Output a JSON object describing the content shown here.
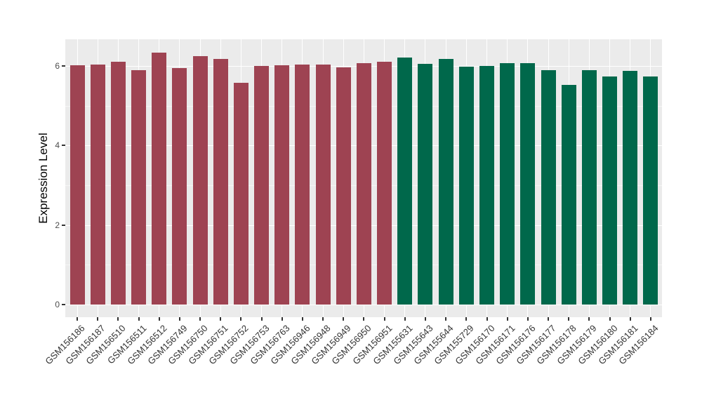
{
  "figure": {
    "background": "#FFFFFF",
    "panel_background": "#EBEBEB",
    "grid_color": "#FFFFFF",
    "tick_color": "#333333"
  },
  "chart_data": {
    "type": "bar",
    "title": "",
    "xlabel": "",
    "ylabel": "Expression Level",
    "ylim": [
      0,
      6.7
    ],
    "yticks": [
      0,
      2,
      4,
      6
    ],
    "yticks_minor": [
      1,
      3,
      5
    ],
    "grid": "on",
    "legend": "none",
    "group_colors": {
      "left_group": "#9E4352",
      "right_group": "#00684B"
    },
    "categories": [
      "GSM156186",
      "GSM156187",
      "GSM156510",
      "GSM156511",
      "GSM156512",
      "GSM156749",
      "GSM156750",
      "GSM156751",
      "GSM156752",
      "GSM156753",
      "GSM156763",
      "GSM156946",
      "GSM156948",
      "GSM156949",
      "GSM156950",
      "GSM156951",
      "GSM155631",
      "GSM155643",
      "GSM155644",
      "GSM155729",
      "GSM156170",
      "GSM156171",
      "GSM156176",
      "GSM156177",
      "GSM156178",
      "GSM156179",
      "GSM156180",
      "GSM156181",
      "GSM156184"
    ],
    "values": [
      6.02,
      6.03,
      6.11,
      5.9,
      6.33,
      5.94,
      6.24,
      6.18,
      5.57,
      6.0,
      6.02,
      6.04,
      6.04,
      5.97,
      6.07,
      6.11,
      6.22,
      6.05,
      6.17,
      5.98,
      6.0,
      6.07,
      6.07,
      5.9,
      5.53,
      5.89,
      5.74,
      5.87,
      5.74
    ],
    "colors": [
      "#9E4352",
      "#9E4352",
      "#9E4352",
      "#9E4352",
      "#9E4352",
      "#9E4352",
      "#9E4352",
      "#9E4352",
      "#9E4352",
      "#9E4352",
      "#9E4352",
      "#9E4352",
      "#9E4352",
      "#9E4352",
      "#9E4352",
      "#9E4352",
      "#00684B",
      "#00684B",
      "#00684B",
      "#00684B",
      "#00684B",
      "#00684B",
      "#00684B",
      "#00684B",
      "#00684B",
      "#00684B",
      "#00684B",
      "#00684B",
      "#00684B"
    ]
  }
}
